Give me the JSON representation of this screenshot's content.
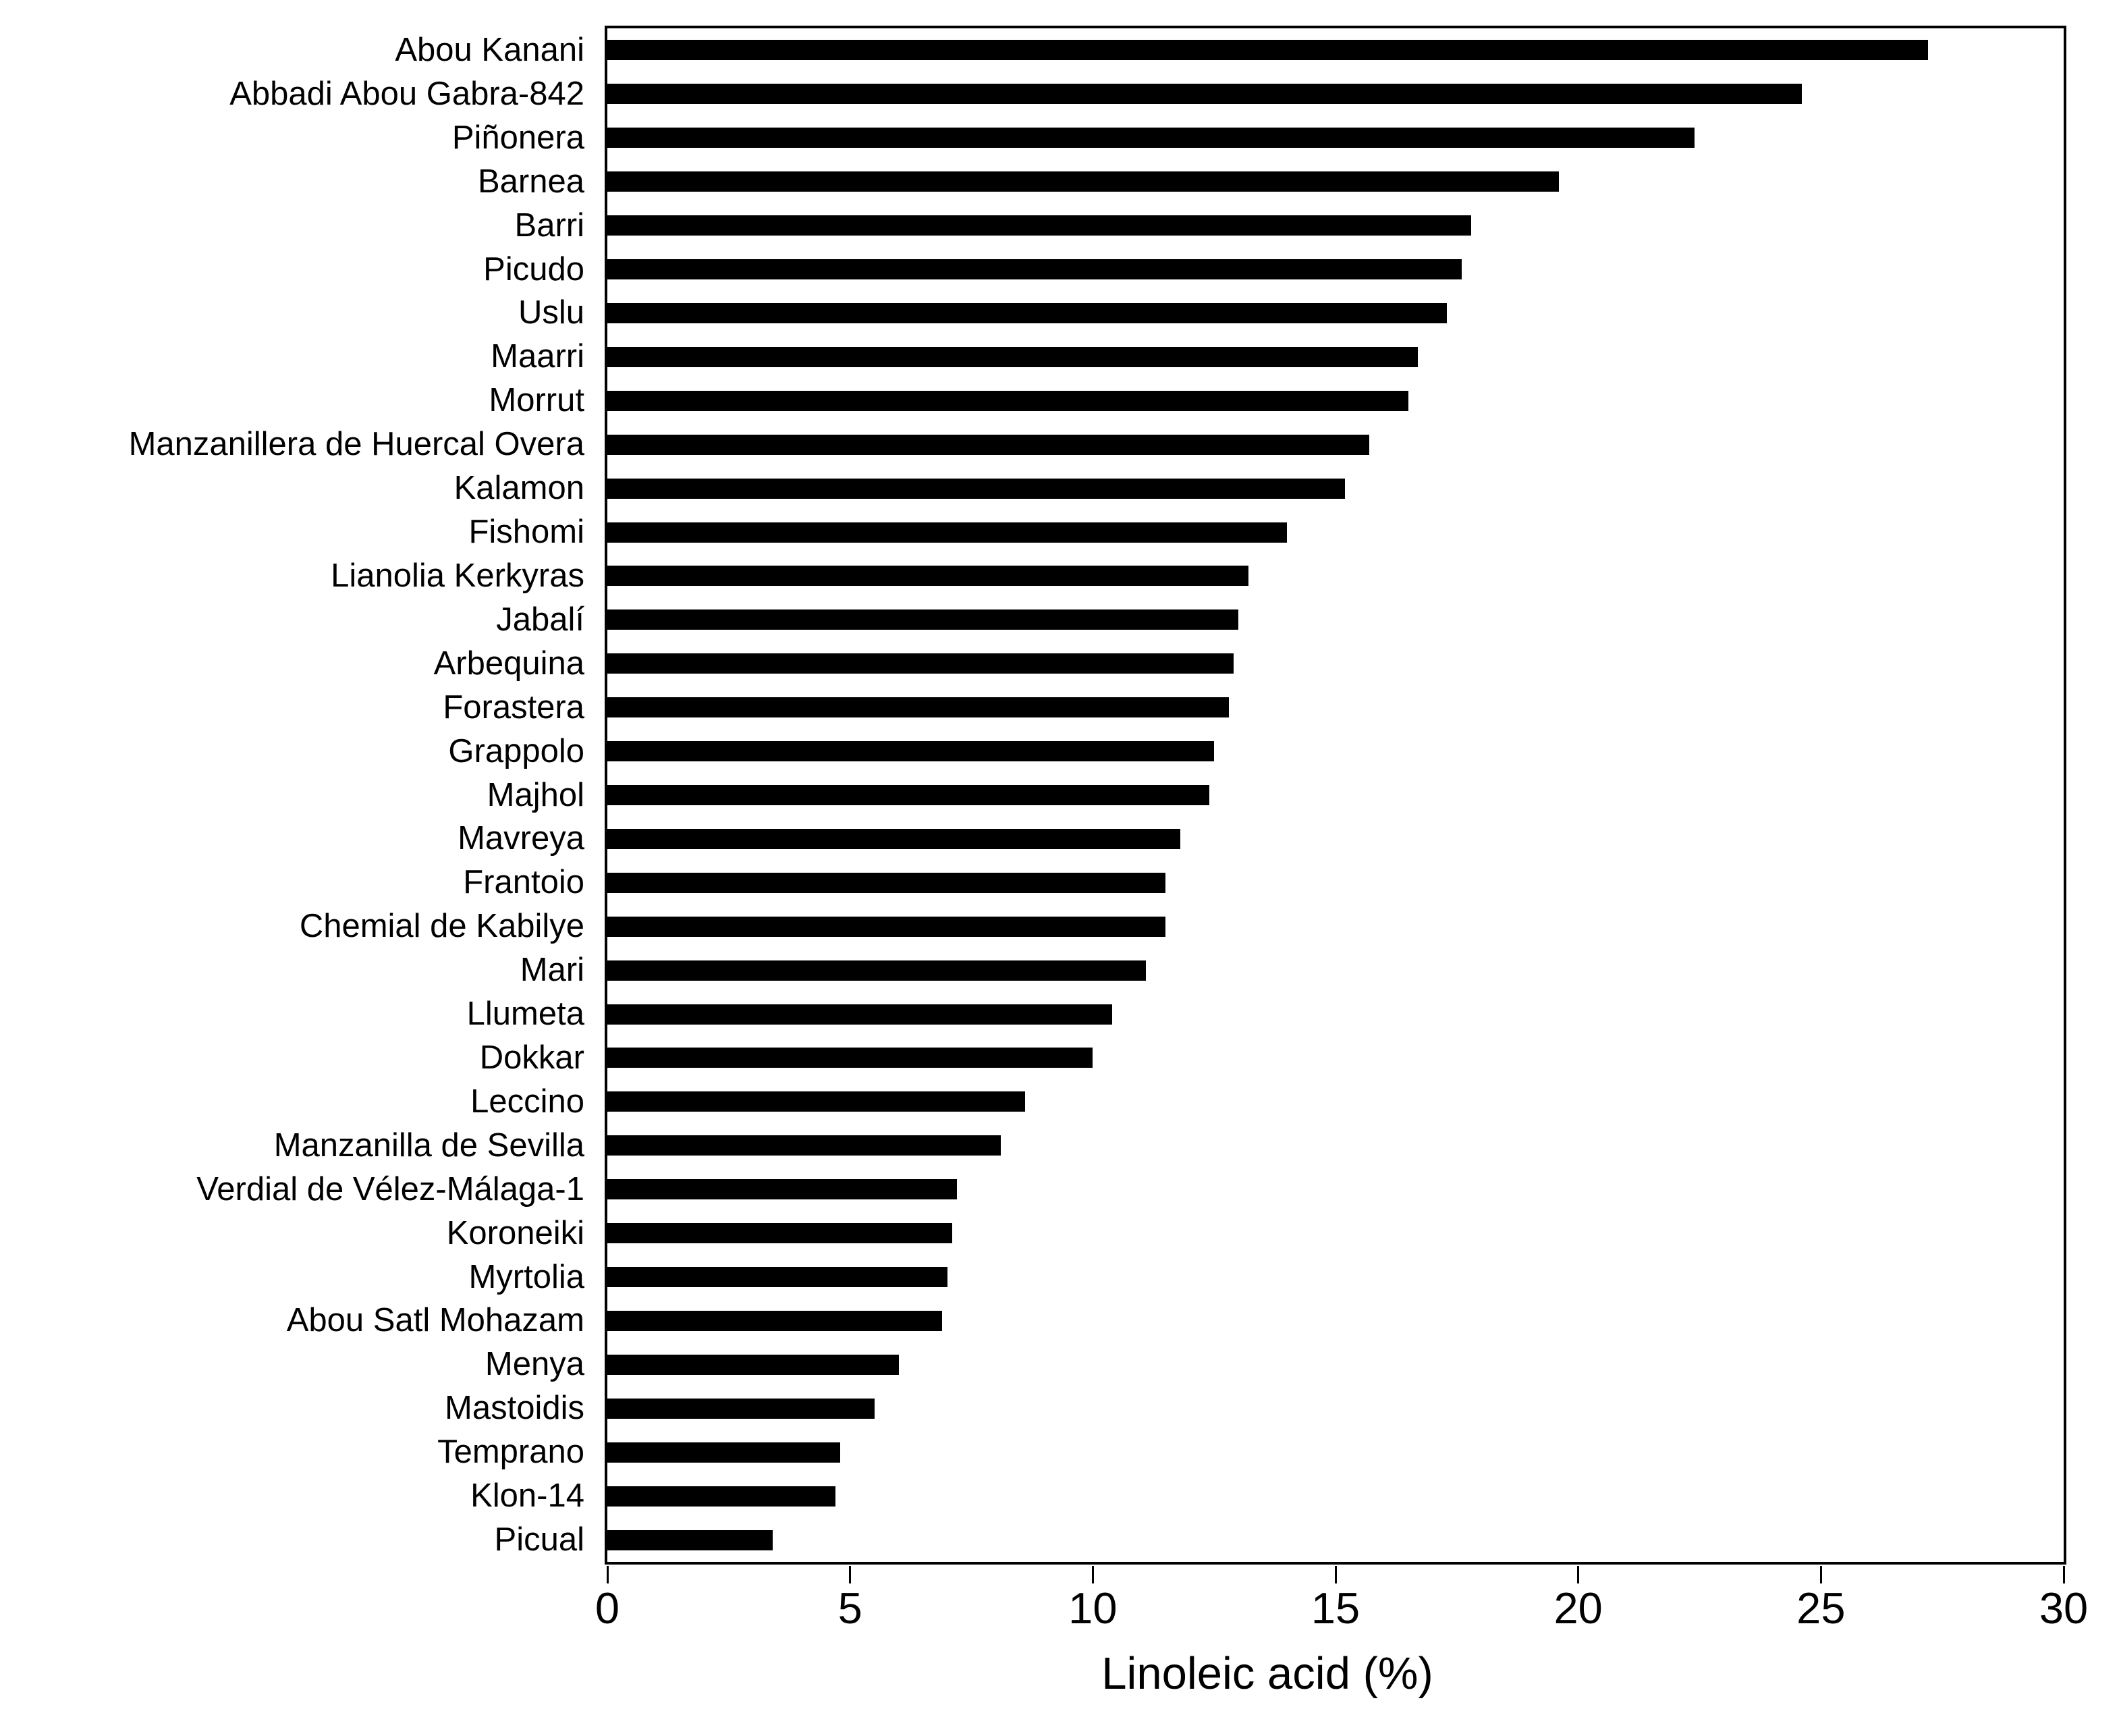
{
  "chart_data": {
    "type": "bar",
    "orientation": "horizontal",
    "xlabel": "Linoleic acid (%)",
    "xlim": [
      0,
      30
    ],
    "xticks": [
      0,
      5,
      10,
      15,
      20,
      25,
      30
    ],
    "grid": false,
    "bar_color": "#000000",
    "background_color": "#ffffff",
    "categories": [
      "Abou Kanani",
      "Abbadi Abou Gabra-842",
      "Piñonera",
      "Barnea",
      "Barri",
      "Picudo",
      "Uslu",
      "Maarri",
      "Morrut",
      "Manzanillera de Huercal Overa",
      "Kalamon",
      "Fishomi",
      "Lianolia Kerkyras",
      "Jabalí",
      "Arbequina",
      "Forastera",
      "Grappolo",
      "Majhol",
      "Mavreya",
      "Frantoio",
      "Chemial de Kabilye",
      "Mari",
      "Llumeta",
      "Dokkar",
      "Leccino",
      "Manzanilla de Sevilla",
      "Verdial de Vélez-Málaga-1",
      "Koroneiki",
      "Myrtolia",
      "Abou Satl Mohazam",
      "Menya",
      "Mastoidis",
      "Temprano",
      "Klon-14",
      "Picual"
    ],
    "values": [
      27.2,
      24.6,
      22.4,
      19.6,
      17.8,
      17.6,
      17.3,
      16.7,
      16.5,
      15.7,
      15.2,
      14.0,
      13.2,
      13.0,
      12.9,
      12.8,
      12.5,
      12.4,
      11.8,
      11.5,
      11.5,
      11.1,
      10.4,
      10.0,
      8.6,
      8.1,
      7.2,
      7.1,
      7.0,
      6.9,
      6.0,
      5.5,
      4.8,
      4.7,
      3.4
    ]
  }
}
